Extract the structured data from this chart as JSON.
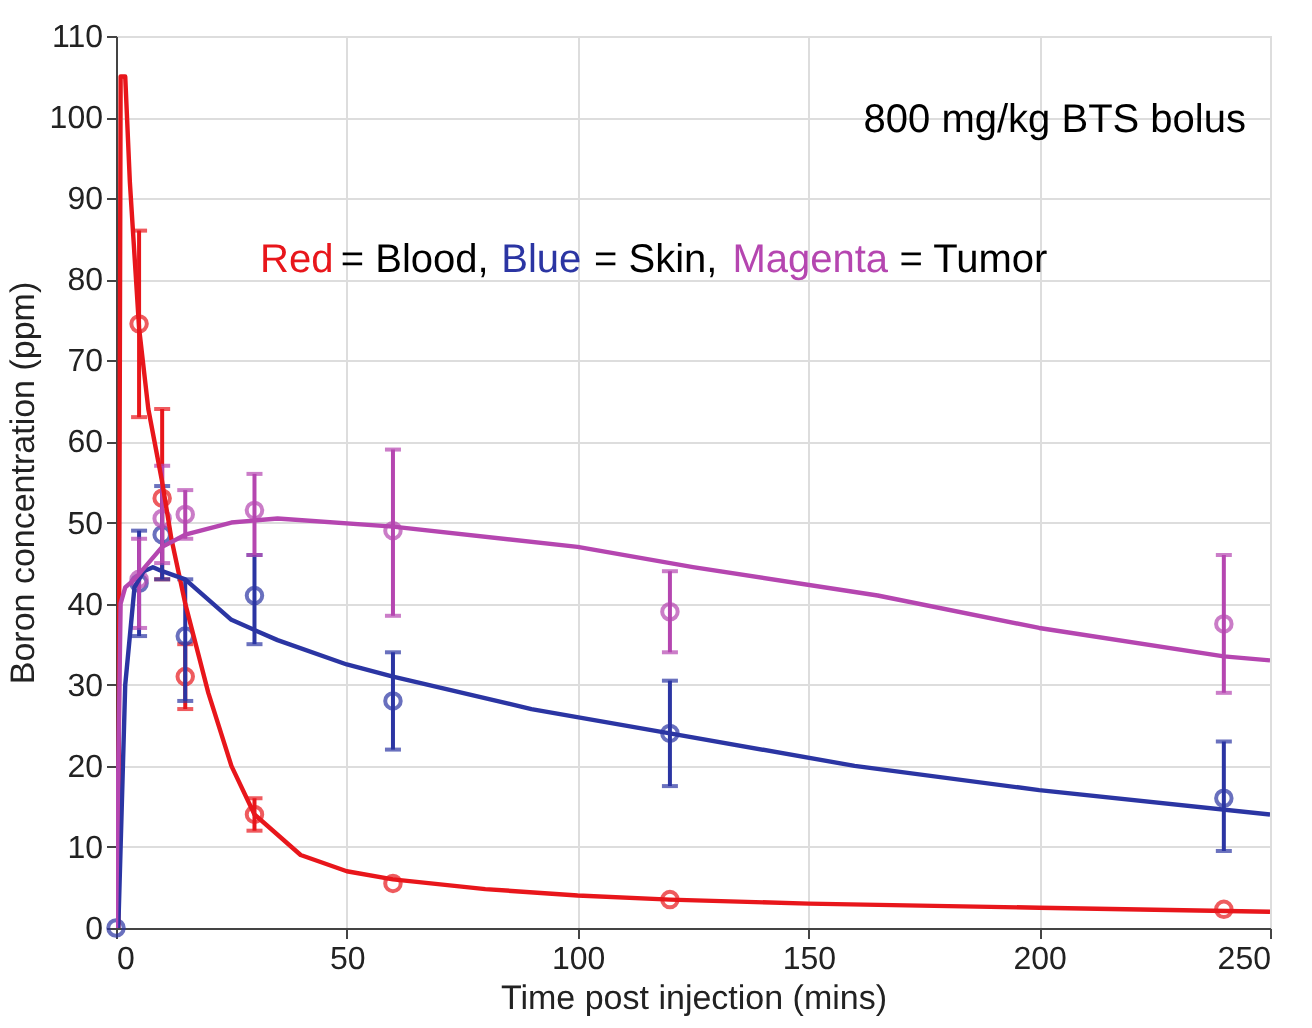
{
  "chart_data": {
    "type": "scatter",
    "xlabel": "Time post injection (mins)",
    "ylabel": "Boron concentration (ppm)",
    "xlim": [
      0,
      250
    ],
    "xticks": [
      0,
      50,
      100,
      150,
      200,
      250
    ],
    "ylim": [
      0,
      110
    ],
    "yticks": [
      0,
      10,
      20,
      30,
      40,
      50,
      60,
      70,
      80,
      90,
      100,
      110
    ],
    "grid": true,
    "annotations": [
      "800 mg/kg BTS bolus",
      "Red = Blood, Blue = Skin, Magenta = Tumor"
    ],
    "series": [
      {
        "marker": "circle",
        "color": "#e8161b",
        "x": [
          5,
          10,
          15,
          30,
          60,
          120,
          240
        ],
        "values": [
          74.5,
          53,
          31,
          14,
          5.5,
          3.5,
          2.3
        ],
        "errors": [
          [
            63,
            86
          ],
          [
            43,
            64
          ],
          [
            27,
            35
          ],
          [
            12,
            16
          ],
          null,
          null,
          null
        ]
      },
      {
        "marker": "circle",
        "color": "#2b35a3",
        "x": [
          0,
          5,
          10,
          15,
          30,
          60,
          120,
          240
        ],
        "values": [
          0,
          42.5,
          48.5,
          36,
          41,
          28,
          24,
          16
        ],
        "errors": [
          null,
          [
            36,
            49
          ],
          [
            43,
            54.5
          ],
          [
            28,
            43
          ],
          [
            35,
            46
          ],
          [
            22,
            34
          ],
          [
            17.5,
            30.5
          ],
          [
            9.5,
            23
          ]
        ]
      },
      {
        "marker": "circle",
        "color": "#b546b0",
        "x": [
          5,
          10,
          15,
          30,
          60,
          120,
          240
        ],
        "values": [
          43,
          50.5,
          51,
          51.5,
          49,
          39,
          37.5
        ],
        "errors": [
          [
            37,
            48
          ],
          [
            45,
            57
          ],
          [
            48,
            54
          ],
          [
            46,
            56
          ],
          [
            38.5,
            59
          ],
          [
            34,
            44
          ],
          [
            29,
            46
          ]
        ]
      },
      {
        "type": "line",
        "marker": "none",
        "color": "#e8161b",
        "x": [
          0.5,
          1,
          2,
          3,
          5,
          7,
          10,
          12,
          15,
          20,
          25,
          30,
          40,
          50,
          60,
          80,
          100,
          120,
          150,
          200,
          250
        ],
        "values": [
          0,
          105,
          105,
          92,
          74,
          64,
          55,
          48,
          40,
          29,
          20,
          14,
          9,
          7,
          6,
          4.8,
          4,
          3.5,
          3,
          2.5,
          2
        ]
      },
      {
        "type": "line",
        "marker": "none",
        "color": "#2b35a3",
        "x": [
          0.5,
          2,
          4,
          6,
          8,
          10,
          15,
          20,
          25,
          35,
          50,
          60,
          90,
          120,
          160,
          200,
          250
        ],
        "values": [
          0,
          30,
          42,
          44,
          44.5,
          44,
          43,
          40.5,
          38,
          35.5,
          32.5,
          31,
          27,
          24,
          20,
          17,
          14
        ]
      },
      {
        "type": "line",
        "marker": "none",
        "color": "#b546b0",
        "x": [
          0,
          1,
          2,
          4,
          7,
          10,
          15,
          25,
          35,
          60,
          100,
          125,
          165,
          200,
          240,
          250
        ],
        "values": [
          0,
          40,
          42,
          43,
          45,
          47,
          48.5,
          50,
          50.5,
          49.5,
          47,
          44.5,
          41,
          37,
          33.5,
          33
        ]
      }
    ]
  }
}
